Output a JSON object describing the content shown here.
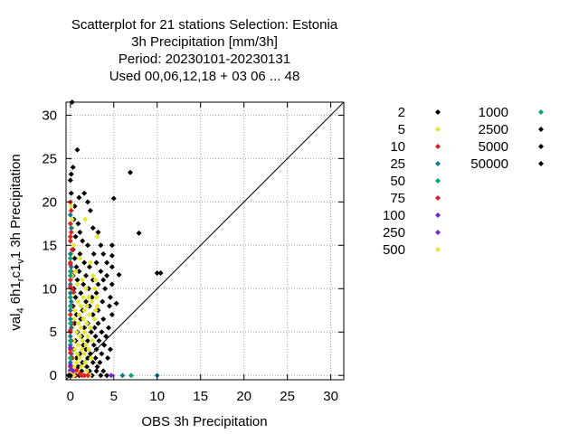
{
  "chart_data": {
    "type": "scatter",
    "title_lines": [
      "Scatterplot for   21 stations Selection: Estonia",
      "3h Precipitation [mm/3h]",
      "Period: 20230101-20230131",
      "Used  00,06,12,18  + 03 06 ... 48"
    ],
    "xlabel": "OBS 3h Precipitation",
    "ylabel_parts": [
      "val",
      "4",
      " 6h1",
      "r",
      "c1",
      "v",
      "1 3h Precipitation"
    ],
    "xlim": [
      -0.5,
      31.5
    ],
    "ylim": [
      -0.5,
      31.5
    ],
    "x_ticks": [
      "0",
      "5",
      "10",
      "15",
      "20",
      "25",
      "30"
    ],
    "y_ticks": [
      "0",
      "5",
      "10",
      "15",
      "20",
      "25",
      "30"
    ],
    "grid": true,
    "diagonal": true,
    "legend_position": "right",
    "series": [
      {
        "name": "2",
        "color": "#000000",
        "points": [
          [
            0.2,
            31.5
          ],
          [
            0.3,
            24.0
          ],
          [
            0.1,
            23.2
          ],
          [
            0.0,
            22.5
          ],
          [
            0.1,
            21.0
          ],
          [
            0.8,
            26.0
          ],
          [
            1.6,
            21.0
          ],
          [
            1.0,
            20.5
          ],
          [
            2.0,
            20.0
          ],
          [
            0.5,
            19.5
          ],
          [
            2.3,
            19.0
          ],
          [
            0.4,
            18.0
          ],
          [
            0.9,
            17.5
          ],
          [
            2.6,
            17.0
          ],
          [
            1.1,
            16.5
          ],
          [
            3.2,
            16.5
          ],
          [
            0.6,
            16.0
          ],
          [
            1.4,
            15.5
          ],
          [
            2.0,
            15.0
          ],
          [
            3.5,
            15.0
          ],
          [
            4.8,
            15.0
          ],
          [
            0.3,
            14.5
          ],
          [
            1.1,
            14.0
          ],
          [
            2.7,
            14.0
          ],
          [
            3.8,
            14.0
          ],
          [
            0.5,
            13.5
          ],
          [
            1.6,
            13.0
          ],
          [
            3.0,
            13.0
          ],
          [
            4.2,
            13.0
          ],
          [
            0.7,
            12.5
          ],
          [
            2.2,
            12.5
          ],
          [
            4.8,
            12.5
          ],
          [
            1.0,
            12.0
          ],
          [
            3.5,
            12.0
          ],
          [
            0.3,
            11.5
          ],
          [
            1.8,
            11.5
          ],
          [
            4.2,
            11.5
          ],
          [
            0.8,
            11.0
          ],
          [
            2.6,
            11.0
          ],
          [
            3.8,
            11.0
          ],
          [
            1.5,
            10.5
          ],
          [
            3.2,
            10.5
          ],
          [
            4.8,
            10.5
          ],
          [
            0.4,
            10.0
          ],
          [
            2.1,
            10.0
          ],
          [
            4.0,
            10.0
          ],
          [
            1.2,
            9.5
          ],
          [
            3.0,
            9.5
          ],
          [
            0.6,
            9.0
          ],
          [
            2.5,
            9.0
          ],
          [
            4.6,
            9.0
          ],
          [
            1.8,
            8.5
          ],
          [
            3.7,
            8.5
          ],
          [
            0.3,
            8.0
          ],
          [
            2.2,
            8.0
          ],
          [
            4.5,
            8.0
          ],
          [
            1.4,
            7.5
          ],
          [
            3.2,
            7.5
          ],
          [
            0.7,
            7.0
          ],
          [
            2.6,
            7.0
          ],
          [
            4.8,
            7.0
          ],
          [
            1.2,
            6.5
          ],
          [
            3.8,
            6.5
          ],
          [
            0.5,
            6.0
          ],
          [
            2.0,
            6.0
          ],
          [
            3.2,
            6.0
          ],
          [
            1.6,
            5.5
          ],
          [
            2.8,
            5.5
          ],
          [
            4.4,
            5.5
          ],
          [
            0.8,
            5.0
          ],
          [
            2.4,
            5.0
          ],
          [
            3.6,
            5.0
          ],
          [
            1.3,
            4.5
          ],
          [
            2.9,
            4.5
          ],
          [
            4.1,
            4.5
          ],
          [
            0.6,
            4.0
          ],
          [
            2.0,
            4.0
          ],
          [
            3.3,
            4.0
          ],
          [
            1.5,
            3.5
          ],
          [
            2.7,
            3.5
          ],
          [
            3.9,
            3.5
          ],
          [
            0.4,
            3.0
          ],
          [
            1.8,
            3.0
          ],
          [
            3.0,
            3.0
          ],
          [
            4.6,
            3.0
          ],
          [
            1.1,
            2.5
          ],
          [
            2.3,
            2.5
          ],
          [
            3.6,
            2.5
          ],
          [
            0.7,
            2.0
          ],
          [
            2.0,
            2.0
          ],
          [
            2.9,
            2.0
          ],
          [
            4.3,
            2.0
          ],
          [
            1.4,
            1.5
          ],
          [
            2.6,
            1.5
          ],
          [
            3.4,
            1.5
          ],
          [
            0.9,
            1.0
          ],
          [
            1.9,
            1.0
          ],
          [
            3.1,
            1.0
          ],
          [
            1.3,
            0.5
          ],
          [
            2.2,
            0.5
          ],
          [
            3.0,
            0.5
          ],
          [
            3.8,
            0.5
          ],
          [
            0.2,
            0.2
          ],
          [
            0.6,
            0.0
          ],
          [
            1.0,
            0.0
          ],
          [
            1.6,
            0.0
          ],
          [
            2.5,
            0.0
          ],
          [
            3.5,
            0.0
          ],
          [
            4.2,
            0.0
          ],
          [
            6.9,
            23.4
          ],
          [
            5.0,
            20.4
          ],
          [
            7.9,
            16.4
          ],
          [
            4.8,
            13.8
          ],
          [
            10.0,
            11.8
          ],
          [
            10.4,
            11.8
          ],
          [
            5.3,
            8.3
          ],
          [
            5.6,
            11.6
          ]
        ]
      },
      {
        "name": "5",
        "color": "#e6e62e",
        "points": [
          [
            0.2,
            18.0
          ],
          [
            1.7,
            18.0
          ],
          [
            3.1,
            16.0
          ],
          [
            0.4,
            15.0
          ],
          [
            1.1,
            13.5
          ],
          [
            2.3,
            13.0
          ],
          [
            0.6,
            12.0
          ],
          [
            2.6,
            11.5
          ],
          [
            1.4,
            11.0
          ],
          [
            2.9,
            11.0
          ],
          [
            0.8,
            10.5
          ],
          [
            1.8,
            10.0
          ],
          [
            2.8,
            10.0
          ],
          [
            0.3,
            9.5
          ],
          [
            1.5,
            9.0
          ],
          [
            2.1,
            9.0
          ],
          [
            3.0,
            9.0
          ],
          [
            0.9,
            8.5
          ],
          [
            2.5,
            8.5
          ],
          [
            1.2,
            8.0
          ],
          [
            1.9,
            8.0
          ],
          [
            3.1,
            8.0
          ],
          [
            0.5,
            7.5
          ],
          [
            1.6,
            7.5
          ],
          [
            2.9,
            7.5
          ],
          [
            1.0,
            7.0
          ],
          [
            2.2,
            7.0
          ],
          [
            0.4,
            6.5
          ],
          [
            1.5,
            6.5
          ],
          [
            2.8,
            6.5
          ],
          [
            0.9,
            6.0
          ],
          [
            1.9,
            6.0
          ],
          [
            0.2,
            5.5
          ],
          [
            1.2,
            5.5
          ],
          [
            2.3,
            5.5
          ],
          [
            0.7,
            5.0
          ],
          [
            1.6,
            5.0
          ],
          [
            1.1,
            4.5
          ],
          [
            2.0,
            4.5
          ],
          [
            0.4,
            4.0
          ],
          [
            1.4,
            4.0
          ],
          [
            2.5,
            4.0
          ],
          [
            0.9,
            3.5
          ],
          [
            1.8,
            3.5
          ],
          [
            0.5,
            3.0
          ],
          [
            1.3,
            3.0
          ],
          [
            2.1,
            3.0
          ],
          [
            0.8,
            2.5
          ],
          [
            1.6,
            2.5
          ],
          [
            0.3,
            2.0
          ],
          [
            1.1,
            2.0
          ],
          [
            2.4,
            2.0
          ],
          [
            0.7,
            1.5
          ],
          [
            1.7,
            1.5
          ],
          [
            0.4,
            1.0
          ],
          [
            1.3,
            1.0
          ],
          [
            0.8,
            0.5
          ],
          [
            1.9,
            0.5
          ],
          [
            0.3,
            0.0
          ],
          [
            1.3,
            0.0
          ],
          [
            2.2,
            0.0
          ],
          [
            0.1,
            19.5
          ],
          [
            0.2,
            17.0
          ],
          [
            0.1,
            14.0
          ],
          [
            0.2,
            11.5
          ]
        ]
      },
      {
        "name": "10",
        "color": "#e0201c",
        "points": [
          [
            0.0,
            20.0
          ],
          [
            0.1,
            19.0
          ],
          [
            0.0,
            17.5
          ],
          [
            0.1,
            16.5
          ],
          [
            0.0,
            15.5
          ],
          [
            0.2,
            14.5
          ],
          [
            0.0,
            13.0
          ],
          [
            0.1,
            12.0
          ],
          [
            0.0,
            11.0
          ],
          [
            0.2,
            10.0
          ],
          [
            0.0,
            9.0
          ],
          [
            0.1,
            8.0
          ],
          [
            0.0,
            7.0
          ],
          [
            0.2,
            6.0
          ],
          [
            0.0,
            5.0
          ],
          [
            0.1,
            4.0
          ],
          [
            0.0,
            3.0
          ],
          [
            0.2,
            2.0
          ],
          [
            0.0,
            1.0
          ],
          [
            0.1,
            0.3
          ],
          [
            0.7,
            0.6
          ],
          [
            1.1,
            0.2
          ],
          [
            0.5,
            0.0
          ],
          [
            1.6,
            0.0
          ],
          [
            0.4,
            9.6
          ]
        ]
      },
      {
        "name": "25",
        "color": "#0d7a96",
        "points": [
          [
            0.0,
            18.5
          ],
          [
            0.1,
            17.0
          ],
          [
            0.0,
            14.0
          ],
          [
            0.1,
            12.5
          ],
          [
            0.0,
            10.5
          ],
          [
            0.0,
            9.5
          ],
          [
            0.1,
            8.5
          ],
          [
            0.0,
            7.5
          ],
          [
            0.0,
            6.5
          ],
          [
            0.1,
            5.5
          ],
          [
            0.0,
            4.5
          ],
          [
            0.0,
            3.5
          ],
          [
            0.1,
            2.5
          ],
          [
            0.0,
            1.5
          ],
          [
            0.1,
            0.7
          ],
          [
            0.0,
            0.0
          ],
          [
            6.0,
            0.0
          ],
          [
            10.0,
            0.0
          ]
        ]
      },
      {
        "name": "50",
        "color": "#0aa37a",
        "points": [
          [
            0.0,
            13.5
          ],
          [
            0.0,
            12.0
          ],
          [
            0.0,
            11.5
          ],
          [
            0.0,
            9.0
          ],
          [
            0.0,
            8.0
          ],
          [
            0.0,
            6.0
          ],
          [
            0.0,
            4.0
          ],
          [
            0.0,
            2.0
          ],
          [
            0.0,
            0.5
          ],
          [
            7.0,
            0.0
          ]
        ]
      },
      {
        "name": "75",
        "color": "#dd2222",
        "points": [
          [
            0.0,
            16.0
          ],
          [
            0.0,
            12.8
          ],
          [
            0.0,
            10.2
          ],
          [
            0.0,
            5.2
          ],
          [
            0.0,
            2.6
          ],
          [
            1.3,
            0.0
          ],
          [
            2.0,
            0.0
          ]
        ]
      },
      {
        "name": "100",
        "color": "#7a1fd6",
        "points": [
          [
            0.0,
            3.2
          ],
          [
            0.0,
            1.2
          ],
          [
            0.0,
            0.0
          ],
          [
            4.7,
            0.0
          ],
          [
            0.3,
            0.5
          ]
        ]
      },
      {
        "name": "250",
        "color": "#8a22c8",
        "points": [
          [
            0.0,
            0.6
          ],
          [
            0.2,
            0.0
          ]
        ]
      },
      {
        "name": "500",
        "color": "#f0e040",
        "points": [
          [
            0.0,
            0.2
          ],
          [
            0.4,
            0.0
          ]
        ]
      },
      {
        "name": "1000",
        "color": "#13a07c",
        "points": []
      },
      {
        "name": "2500",
        "color": "#000000",
        "points": [
          [
            0.0,
            0.0
          ],
          [
            -0.2,
            0.0
          ]
        ]
      },
      {
        "name": "5000",
        "color": "#000000",
        "points": []
      },
      {
        "name": "50000",
        "color": "#000000",
        "points": []
      }
    ]
  }
}
